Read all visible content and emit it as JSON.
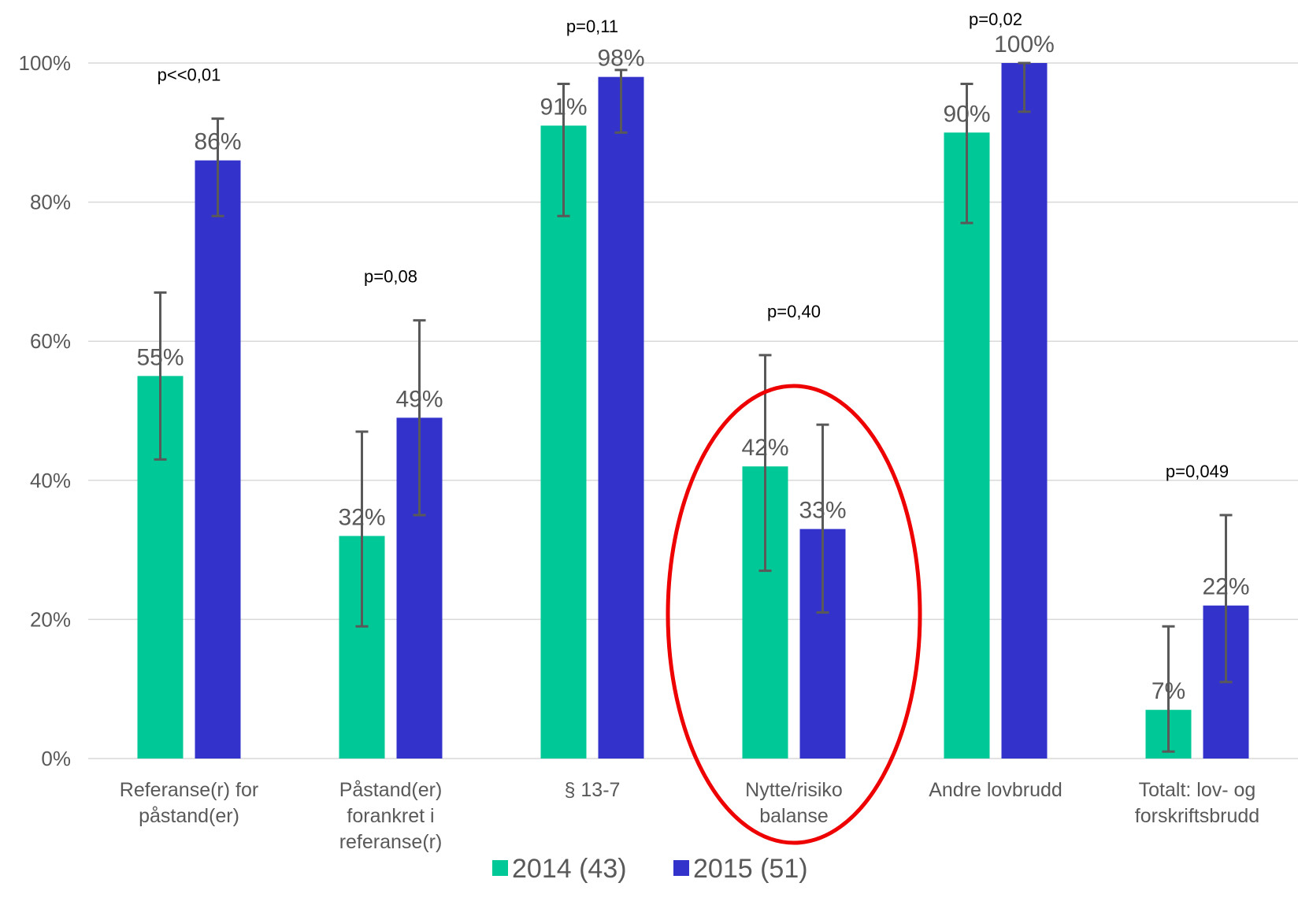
{
  "chart_data": {
    "type": "bar",
    "categories": [
      [
        "Referanse(r) for",
        "påstand(er)"
      ],
      [
        "Påstand(er)",
        "forankret i",
        "referanse(r)"
      ],
      [
        "§ 13-7"
      ],
      [
        "Nytte/risiko",
        "balanse"
      ],
      [
        "Andre lovbrudd"
      ],
      [
        "Totalt: lov- og",
        "forskriftsbrudd"
      ]
    ],
    "series": [
      {
        "name": "2014 (43)",
        "color": "#00C896",
        "values": [
          55,
          32,
          91,
          42,
          90,
          7
        ],
        "data_labels": [
          "55%",
          "32%",
          "91%",
          "42%",
          "90%",
          "7%"
        ],
        "error_low": [
          43,
          19,
          78,
          27,
          77,
          1
        ],
        "error_high": [
          67,
          47,
          97,
          58,
          97,
          19
        ]
      },
      {
        "name": "2015 (51)",
        "color": "#3333CC",
        "values": [
          86,
          49,
          98,
          33,
          100,
          22
        ],
        "data_labels": [
          "86%",
          "49%",
          "98%",
          "33%",
          "100%",
          "22%"
        ],
        "error_low": [
          78,
          35,
          90,
          21,
          93,
          11
        ],
        "error_high": [
          92,
          63,
          99,
          48,
          100,
          35
        ]
      }
    ],
    "p_values": [
      "p<<0,01",
      "p=0,08",
      "p=0,11",
      "p=0,40",
      "p=0,02",
      "p=0,049"
    ],
    "y_ticks": [
      "0%",
      "20%",
      "40%",
      "60%",
      "80%",
      "100%"
    ],
    "ylim": [
      0,
      100
    ],
    "grid": true,
    "legend_position": "bottom",
    "annotation": {
      "type": "ellipse",
      "color": "#EE0000",
      "category": "Nytte/risiko balanse"
    },
    "error_bar_color": "#595959",
    "grid_color": "#D9D9D9"
  }
}
